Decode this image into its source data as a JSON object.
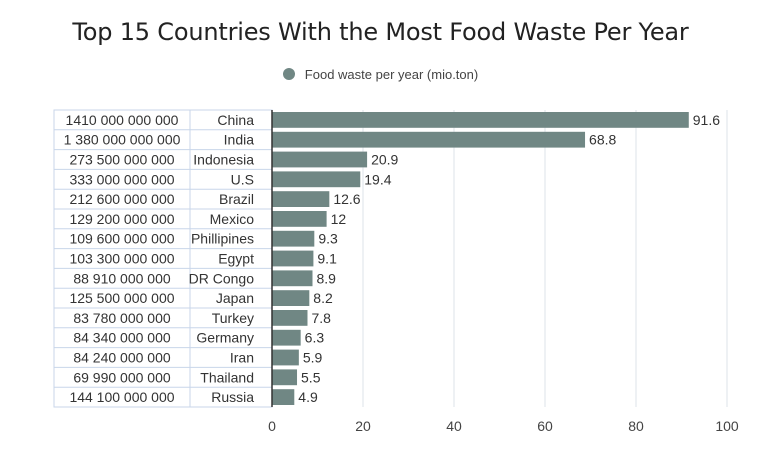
{
  "chart_data": {
    "type": "bar",
    "orientation": "horizontal",
    "title": "Top 15 Countries With the Most Food Waste Per Year",
    "table_column_1": [
      "1410 000 000 000",
      "1 380 000 000 000",
      "273 500 000 000",
      "333 000 000 000",
      "212 600 000 000",
      "129 200 000 000",
      "109 600 000 000",
      "103 300 000 000",
      "88 910 000 000",
      "125 500 000 000",
      "83 780 000 000",
      "84 340 000 000",
      "84 240 000 000",
      "69 990 000 000",
      "144 100 000 000"
    ],
    "categories": [
      "China",
      "India",
      "Indonesia",
      "U.S",
      "Brazil",
      "Mexico",
      "Phillipines",
      "Egypt",
      "DR Congo",
      "Japan",
      "Turkey",
      "Germany",
      "Iran",
      "Thailand",
      "Russia"
    ],
    "series": [
      {
        "name": "Food waste per year (mio.ton)",
        "values": [
          91.6,
          68.8,
          20.9,
          19.4,
          12.6,
          12,
          9.3,
          9.1,
          8.9,
          8.2,
          7.8,
          6.3,
          5.9,
          5.5,
          4.9
        ],
        "labels": [
          "91.6",
          "68.8",
          "20.9",
          "19.4",
          "12.6",
          "12",
          "9.3",
          "9.1",
          "8.9",
          "8.2",
          "7.8",
          "6.3",
          "5.9",
          "5.5",
          "4.9"
        ]
      }
    ],
    "xlim": [
      0,
      100
    ],
    "xticks": [
      0,
      20,
      40,
      60,
      80,
      100
    ],
    "grid": true,
    "legend_position": "top",
    "colors": {
      "bar": "#708784",
      "grid": "#dde3ea",
      "table_border": "#c8d6ea",
      "axis": "#333333"
    }
  }
}
